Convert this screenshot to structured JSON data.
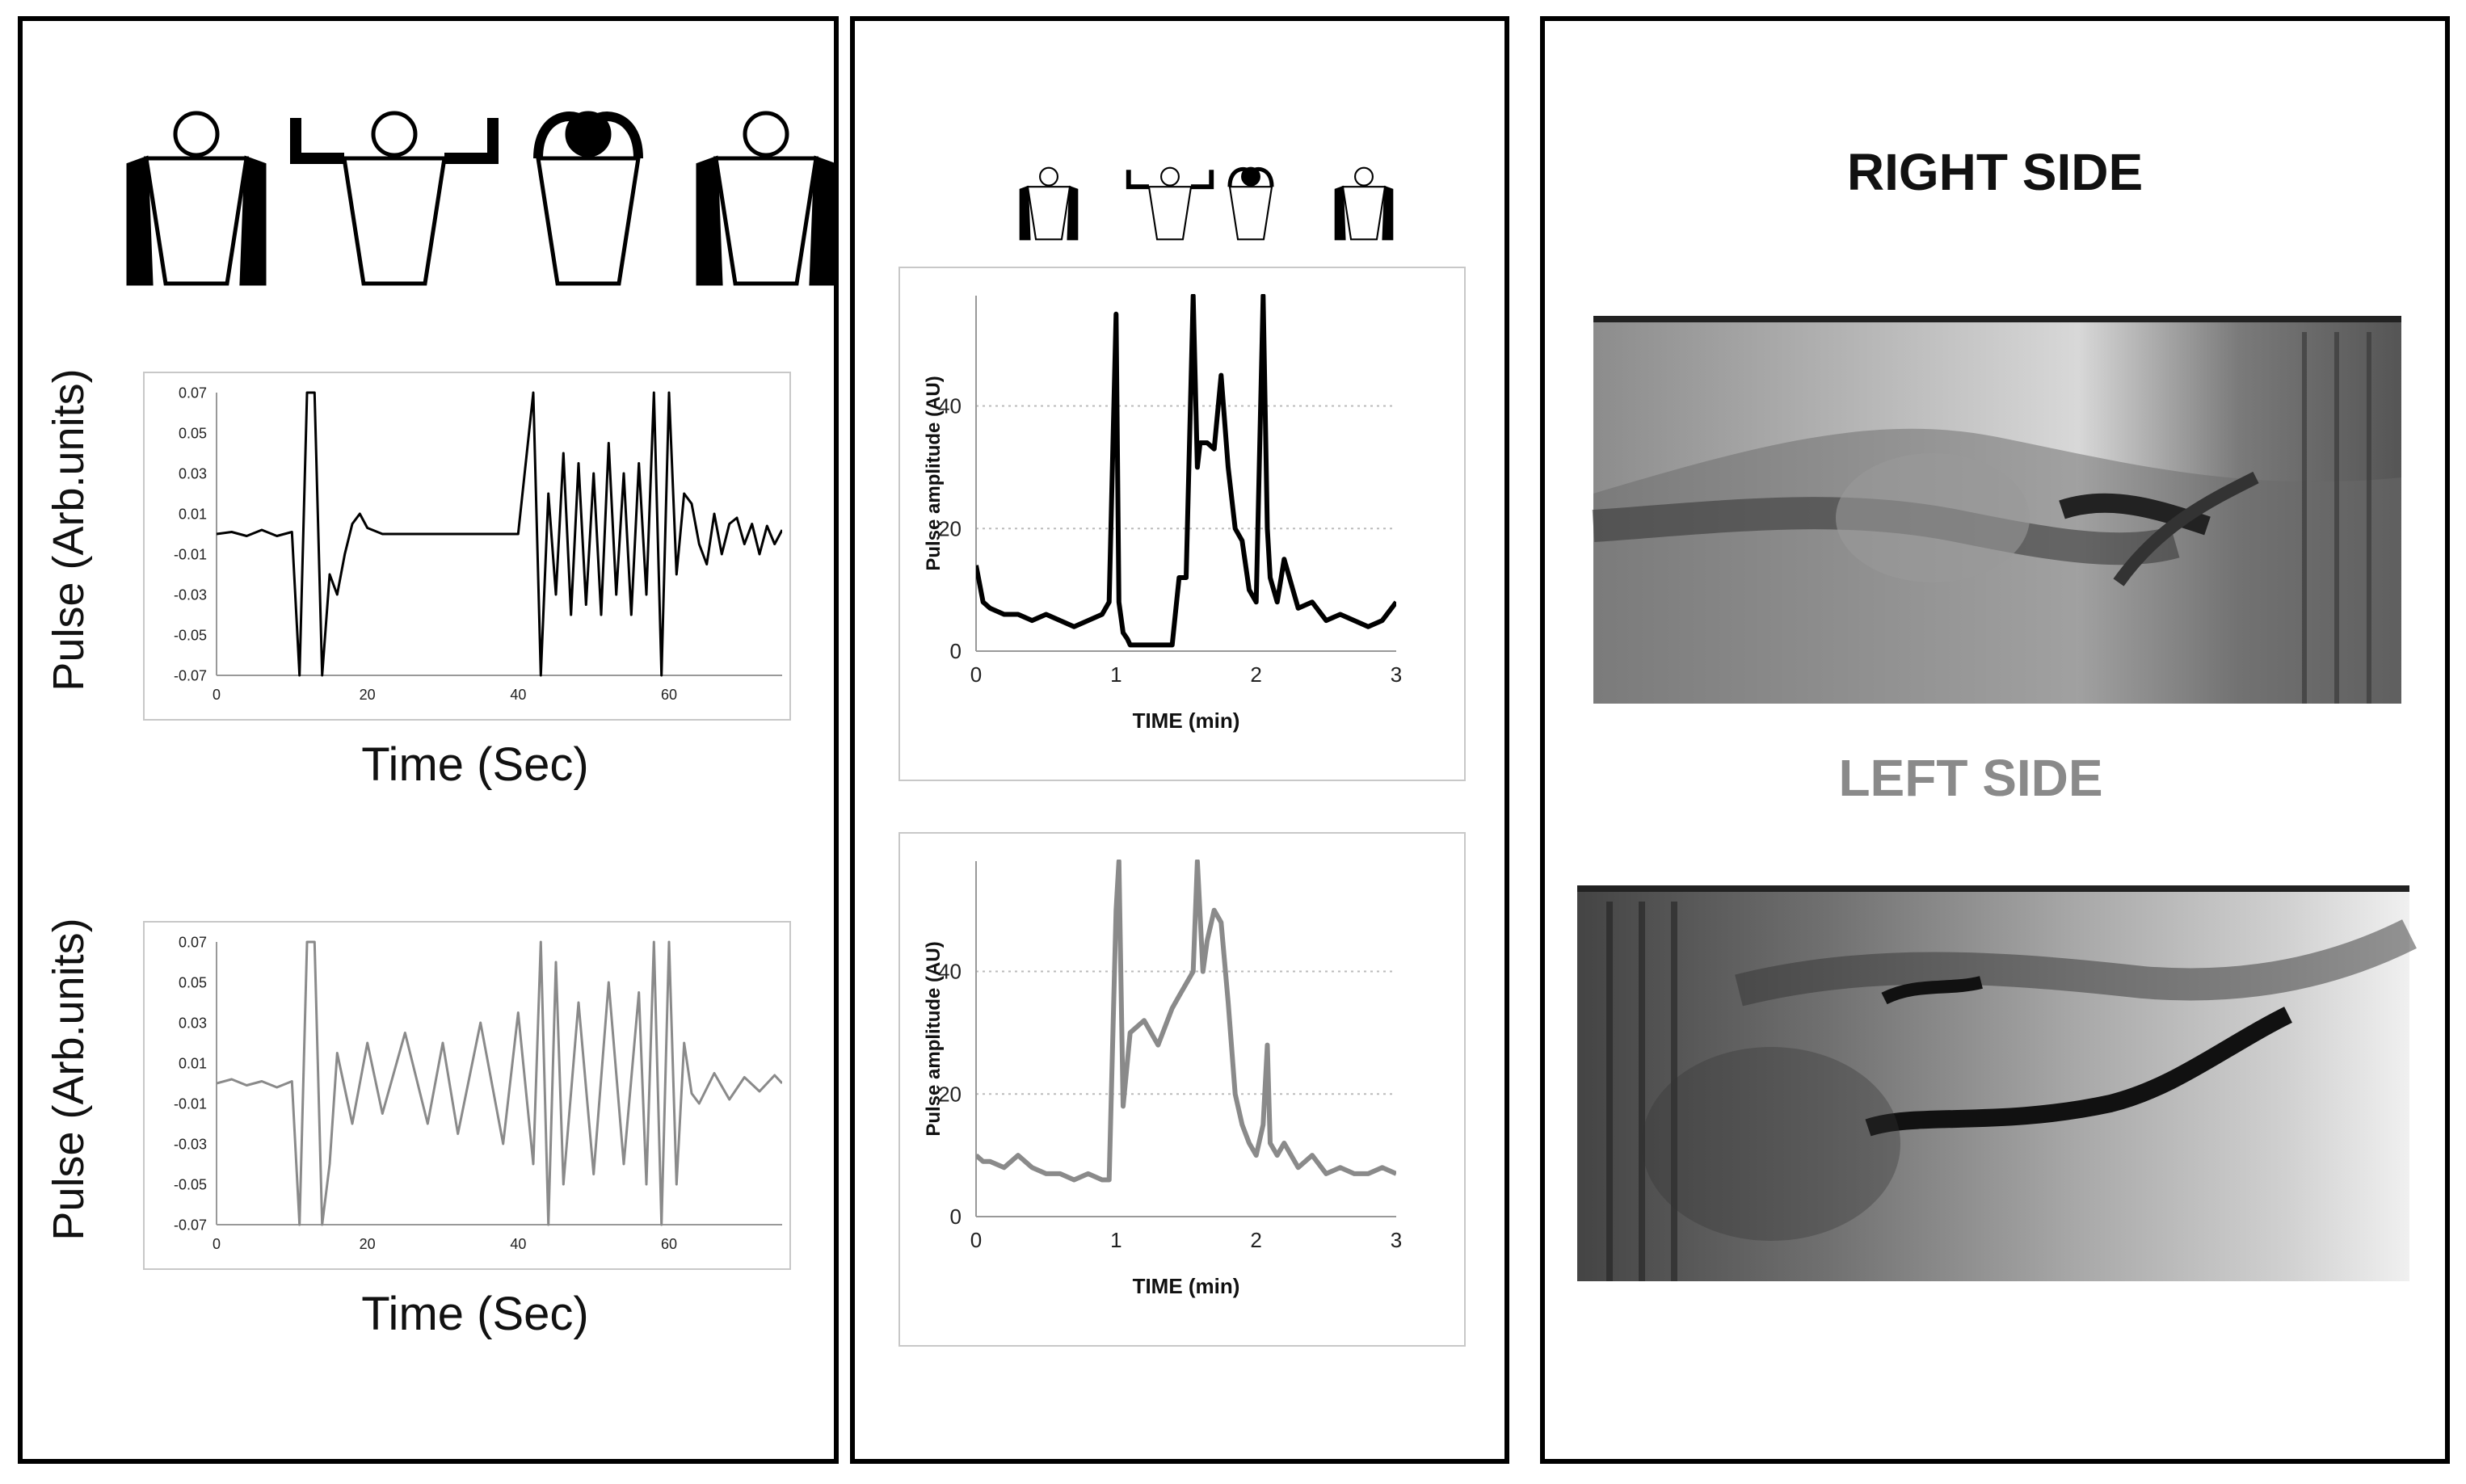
{
  "left_panel": {
    "chart_top": {
      "ylabel": "Pulse (Arb.units)",
      "xlabel": "Time (Sec)",
      "y_ticks": [
        "0.07",
        "0.05",
        "0.03",
        "0.01",
        "-0.01",
        "-0.03",
        "-0.05",
        "-0.07"
      ],
      "x_ticks": [
        "0",
        "20",
        "40",
        "60"
      ]
    },
    "chart_bottom": {
      "ylabel": "Pulse (Arb.units)",
      "xlabel": "Time (Sec)",
      "y_ticks": [
        "0.07",
        "0.05",
        "0.03",
        "0.01",
        "-0.01",
        "-0.03",
        "-0.05",
        "-0.07"
      ],
      "x_ticks": [
        "0",
        "20",
        "40",
        "60"
      ]
    }
  },
  "mid_panel": {
    "chart_top": {
      "ylabel": "Pulse amplitude (AU)",
      "xlabel": "TIME (min)",
      "y_ticks": [
        "0",
        "20",
        "40"
      ],
      "x_ticks": [
        "0",
        "1",
        "2",
        "3"
      ]
    },
    "chart_bottom": {
      "ylabel": "Pulse amplitude (AU)",
      "xlabel": "TIME (min)",
      "y_ticks": [
        "0",
        "20",
        "40"
      ],
      "x_ticks": [
        "0",
        "1",
        "2",
        "3"
      ]
    }
  },
  "right_panel": {
    "right_title": "RIGHT SIDE",
    "left_title": "LEFT SIDE"
  },
  "colors": {
    "right": "#000000",
    "left": "#8a8a8a"
  },
  "chart_data": [
    {
      "type": "line",
      "series": [
        {
          "color": "#000000",
          "x": [
            0,
            2,
            4,
            6,
            8,
            10,
            11,
            12,
            13,
            14,
            15,
            16,
            17,
            18,
            19,
            20,
            22,
            25,
            30,
            35,
            40,
            42,
            43,
            44,
            45,
            46,
            47,
            48,
            49,
            50,
            51,
            52,
            53,
            54,
            55,
            56,
            57,
            58,
            59,
            60,
            61,
            62,
            63,
            64,
            65,
            66,
            67,
            68,
            69,
            70,
            71,
            72,
            73,
            74,
            75
          ],
          "y": [
            0,
            0.001,
            -0.001,
            0.002,
            -0.001,
            0.001,
            -0.07,
            0.07,
            0.07,
            -0.07,
            -0.02,
            -0.03,
            -0.01,
            0.005,
            0.01,
            0.003,
            0,
            0,
            0,
            0,
            0,
            0.07,
            -0.07,
            0.02,
            -0.03,
            0.04,
            -0.04,
            0.035,
            -0.035,
            0.03,
            -0.04,
            0.045,
            -0.03,
            0.03,
            -0.04,
            0.035,
            -0.03,
            0.07,
            -0.07,
            0.07,
            -0.02,
            0.02,
            0.015,
            -0.005,
            -0.015,
            0.01,
            -0.01,
            0.005,
            0.008,
            -0.005,
            0.005,
            -0.01,
            0.004,
            -0.005,
            0.002
          ]
        }
      ],
      "xlim": [
        0,
        75
      ],
      "ylim": [
        -0.07,
        0.07
      ],
      "ylabel": "Pulse (Arb.units)",
      "xlabel": "Time (Sec)"
    },
    {
      "type": "line",
      "series": [
        {
          "color": "#8a8a8a",
          "x": [
            0,
            2,
            4,
            6,
            8,
            10,
            11,
            12,
            13,
            14,
            15,
            16,
            18,
            20,
            22,
            25,
            28,
            30,
            32,
            35,
            38,
            40,
            42,
            43,
            44,
            45,
            46,
            48,
            50,
            52,
            54,
            56,
            57,
            58,
            59,
            60,
            61,
            62,
            63,
            64,
            66,
            68,
            70,
            72,
            74,
            75
          ],
          "y": [
            0,
            0.002,
            -0.001,
            0.001,
            -0.002,
            0.001,
            -0.07,
            0.07,
            0.07,
            -0.07,
            -0.04,
            0.015,
            -0.02,
            0.02,
            -0.015,
            0.025,
            -0.02,
            0.02,
            -0.025,
            0.03,
            -0.03,
            0.035,
            -0.04,
            0.07,
            -0.07,
            0.06,
            -0.05,
            0.04,
            -0.045,
            0.05,
            -0.04,
            0.045,
            -0.05,
            0.07,
            -0.07,
            0.07,
            -0.05,
            0.02,
            -0.005,
            -0.01,
            0.005,
            -0.008,
            0.003,
            -0.004,
            0.004,
            0
          ]
        }
      ],
      "xlim": [
        0,
        75
      ],
      "ylim": [
        -0.07,
        0.07
      ],
      "ylabel": "Pulse (Arb.units)",
      "xlabel": "Time (Sec)"
    },
    {
      "type": "line",
      "series": [
        {
          "color": "#000000",
          "x": [
            0,
            0.05,
            0.1,
            0.2,
            0.3,
            0.4,
            0.5,
            0.6,
            0.7,
            0.8,
            0.9,
            0.95,
            1.0,
            1.02,
            1.05,
            1.08,
            1.1,
            1.2,
            1.3,
            1.4,
            1.45,
            1.5,
            1.55,
            1.58,
            1.6,
            1.65,
            1.7,
            1.75,
            1.8,
            1.85,
            1.9,
            1.95,
            2.0,
            2.05,
            2.08,
            2.1,
            2.15,
            2.2,
            2.3,
            2.4,
            2.5,
            2.6,
            2.7,
            2.8,
            2.9,
            3.0
          ],
          "y": [
            14,
            8,
            7,
            6,
            6,
            5,
            6,
            5,
            4,
            5,
            6,
            8,
            55,
            8,
            3,
            2,
            1,
            1,
            1,
            1,
            12,
            12,
            58,
            30,
            34,
            34,
            33,
            45,
            30,
            20,
            18,
            10,
            8,
            58,
            20,
            12,
            8,
            15,
            7,
            8,
            5,
            6,
            5,
            4,
            5,
            8
          ]
        }
      ],
      "xlim": [
        0,
        3
      ],
      "ylim": [
        0,
        58
      ],
      "ylabel": "Pulse amplitude (AU)",
      "xlabel": "TIME (min)"
    },
    {
      "type": "line",
      "series": [
        {
          "color": "#8a8a8a",
          "x": [
            0,
            0.05,
            0.1,
            0.2,
            0.3,
            0.4,
            0.5,
            0.6,
            0.7,
            0.8,
            0.9,
            0.95,
            1.0,
            1.02,
            1.05,
            1.1,
            1.2,
            1.3,
            1.4,
            1.45,
            1.5,
            1.55,
            1.58,
            1.62,
            1.65,
            1.7,
            1.75,
            1.8,
            1.85,
            1.9,
            1.95,
            2.0,
            2.05,
            2.08,
            2.1,
            2.15,
            2.2,
            2.3,
            2.4,
            2.5,
            2.6,
            2.7,
            2.8,
            2.9,
            3.0
          ],
          "y": [
            10,
            9,
            9,
            8,
            10,
            8,
            7,
            7,
            6,
            7,
            6,
            6,
            50,
            58,
            18,
            30,
            32,
            28,
            34,
            36,
            38,
            40,
            58,
            40,
            45,
            50,
            48,
            35,
            20,
            15,
            12,
            10,
            15,
            28,
            12,
            10,
            12,
            8,
            10,
            7,
            8,
            7,
            7,
            8,
            7
          ]
        }
      ],
      "xlim": [
        0,
        3
      ],
      "ylim": [
        0,
        58
      ],
      "ylabel": "Pulse amplitude (AU)",
      "xlabel": "TIME (min)"
    }
  ]
}
